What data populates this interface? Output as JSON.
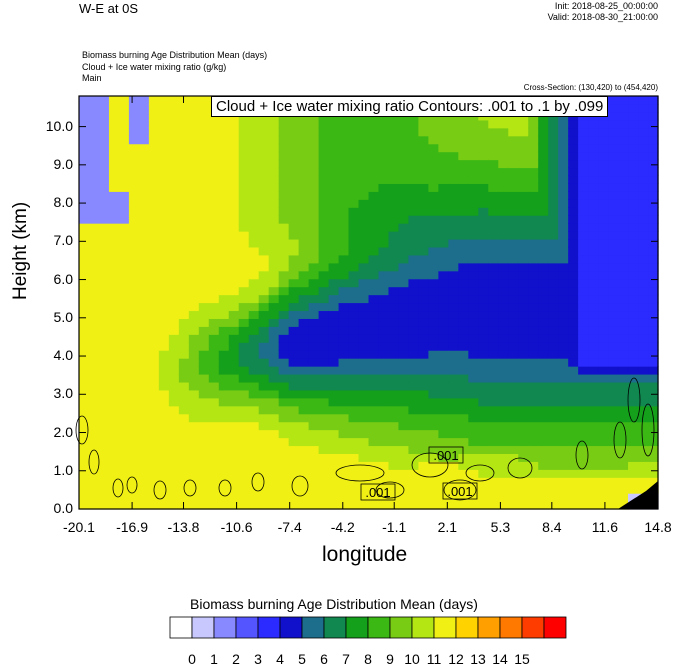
{
  "header": {
    "title": "W-E at 0S",
    "init": "Init: 2018-08-25_00:00:00",
    "valid": "Valid: 2018-08-30_21:00:00",
    "fields": [
      "Biomass burning Age Distribution Mean    (days)",
      "Cloud + Ice water mixing ratio    (g/kg)",
      "Main"
    ],
    "cross_section": "Cross-Section: (130,420) to (454,420)"
  },
  "contour_label": "Cloud + Ice water mixing ratio Contours: .001 to .1 by .099",
  "contour_value_labels": [
    ".001",
    ".001",
    ".001"
  ],
  "legend": {
    "title": "Biomass burning Age Distribution Mean  (days)",
    "labels": [
      "0",
      "1",
      "2",
      "3",
      "4",
      "5",
      "6",
      "7",
      "8",
      "9",
      "10",
      "11",
      "12",
      "13",
      "14",
      "15"
    ],
    "colors": [
      "#ffffff",
      "#c8c8ff",
      "#8888ff",
      "#5555ff",
      "#2b2bff",
      "#1111cc",
      "#1c6e8c",
      "#108850",
      "#14a01a",
      "#3cb814",
      "#78cc14",
      "#b4e614",
      "#f0f014",
      "#ffd200",
      "#ffa000",
      "#ff7800",
      "#ff3c00",
      "#ff0000"
    ]
  },
  "chart_data": {
    "type": "heatmap",
    "title": "W-E at 0S",
    "xlabel": "longitude",
    "ylabel": "Height (km)",
    "x_ticks": [
      "-20.1",
      "-16.9",
      "-13.8",
      "-10.6",
      "-7.4",
      "-4.2",
      "-1.1",
      "2.1",
      "5.3",
      "8.4",
      "11.6",
      "14.8"
    ],
    "y_ticks": [
      "0.0",
      "1.0",
      "2.0",
      "3.0",
      "4.0",
      "5.0",
      "6.0",
      "7.0",
      "8.0",
      "9.0",
      "10.0"
    ],
    "xlim": [
      -20.1,
      14.8
    ],
    "ylim": [
      0,
      10.8
    ],
    "field": "Biomass burning Age Distribution Mean (days)",
    "overlay": "Cloud + Ice water mixing ratio contours .001 to .1 by .099 g/kg"
  }
}
